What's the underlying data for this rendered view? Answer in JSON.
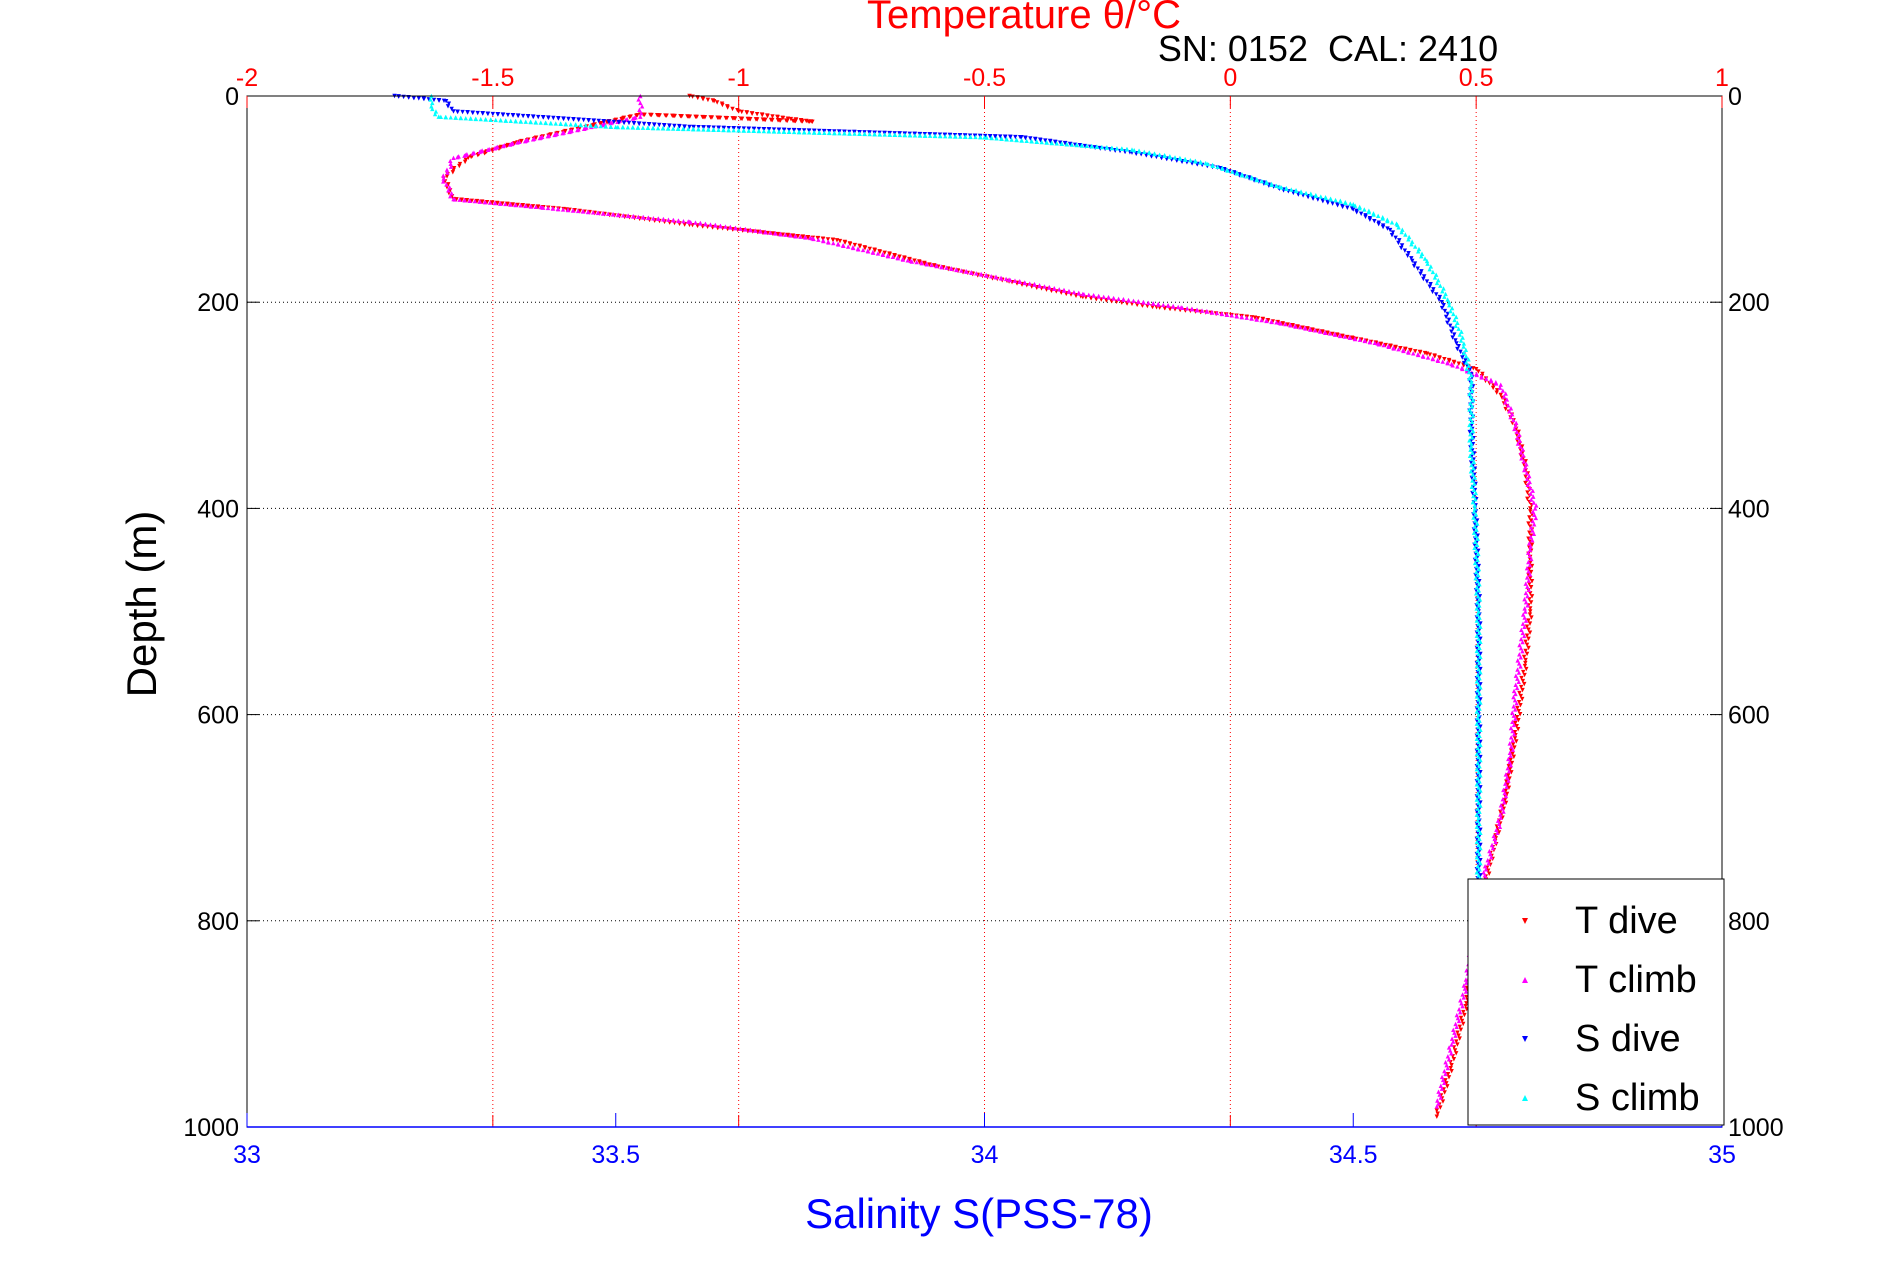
{
  "chart_data": {
    "type": "scatter",
    "top_axis_title": "Temperature θ/°C",
    "annotation": "SN: 0152  CAL: 2410",
    "xlabel": "Salinity S(PSS-78)",
    "ylabel": "Depth (m)",
    "x_bottom_range": [
      33,
      35
    ],
    "x_top_range": [
      -2,
      1
    ],
    "y_range": [
      0,
      1000
    ],
    "y_reversed": true,
    "x_bottom_ticks": [
      "33",
      "33.5",
      "34",
      "34.5",
      "35"
    ],
    "x_top_ticks": [
      "-2",
      "-1.5",
      "-1",
      "-0.5",
      "0",
      "0.5",
      "1"
    ],
    "y_ticks": [
      "0",
      "200",
      "400",
      "600",
      "800",
      "1000"
    ],
    "grid": true,
    "legend_position": "bottom-right",
    "colors": {
      "top_axis": "#ff0000",
      "bottom_axis": "#0000ff",
      "grid": "#000000",
      "axis_frame": "#000000"
    },
    "series": [
      {
        "name": "T dive",
        "axis": "top",
        "marker": "triangle-down",
        "color": "#ff0000",
        "points": [
          [
            -1.1,
            0
          ],
          [
            -1.05,
            5
          ],
          [
            -1.0,
            15
          ],
          [
            -0.9,
            22
          ],
          [
            -0.85,
            25
          ],
          [
            -1.2,
            18
          ],
          [
            -1.45,
            45
          ],
          [
            -1.55,
            60
          ],
          [
            -1.6,
            80
          ],
          [
            -1.58,
            100
          ],
          [
            -1.35,
            110
          ],
          [
            -1.1,
            125
          ],
          [
            -0.8,
            140
          ],
          [
            -0.6,
            165
          ],
          [
            -0.45,
            180
          ],
          [
            -0.3,
            195
          ],
          [
            -0.15,
            205
          ],
          [
            0.05,
            215
          ],
          [
            0.25,
            235
          ],
          [
            0.4,
            250
          ],
          [
            0.5,
            265
          ],
          [
            0.55,
            290
          ],
          [
            0.58,
            320
          ],
          [
            0.6,
            360
          ],
          [
            0.61,
            400
          ],
          [
            0.61,
            450
          ],
          [
            0.61,
            500
          ],
          [
            0.6,
            550
          ],
          [
            0.58,
            620
          ],
          [
            0.56,
            680
          ],
          [
            0.54,
            720
          ],
          [
            0.52,
            760
          ],
          [
            0.5,
            820
          ],
          [
            0.48,
            880
          ],
          [
            0.45,
            940
          ],
          [
            0.42,
            990
          ]
        ]
      },
      {
        "name": "T climb",
        "axis": "top",
        "marker": "triangle-up",
        "color": "#ff00ff",
        "points": [
          [
            -1.2,
            0
          ],
          [
            -1.2,
            20
          ],
          [
            -1.3,
            30
          ],
          [
            -1.45,
            45
          ],
          [
            -1.58,
            60
          ],
          [
            -1.6,
            80
          ],
          [
            -1.58,
            100
          ],
          [
            -1.4,
            108
          ],
          [
            -1.1,
            122
          ],
          [
            -0.85,
            138
          ],
          [
            -0.65,
            160
          ],
          [
            -0.45,
            178
          ],
          [
            -0.3,
            192
          ],
          [
            -0.1,
            205
          ],
          [
            0.1,
            220
          ],
          [
            0.3,
            240
          ],
          [
            0.45,
            260
          ],
          [
            0.55,
            280
          ],
          [
            0.58,
            320
          ],
          [
            0.6,
            360
          ],
          [
            0.62,
            400
          ],
          [
            0.61,
            440
          ],
          [
            0.6,
            500
          ],
          [
            0.58,
            580
          ],
          [
            0.57,
            640
          ],
          [
            0.55,
            700
          ],
          [
            0.52,
            750
          ],
          [
            0.5,
            800
          ],
          [
            0.48,
            860
          ],
          [
            0.45,
            920
          ],
          [
            0.42,
            980
          ]
        ]
      },
      {
        "name": "S dive",
        "axis": "bottom",
        "marker": "triangle-down",
        "color": "#0000ff",
        "points": [
          [
            33.2,
            0
          ],
          [
            33.27,
            5
          ],
          [
            33.28,
            15
          ],
          [
            33.6,
            30
          ],
          [
            34.05,
            40
          ],
          [
            34.2,
            55
          ],
          [
            34.32,
            70
          ],
          [
            34.4,
            90
          ],
          [
            34.5,
            110
          ],
          [
            34.55,
            130
          ],
          [
            34.58,
            160
          ],
          [
            34.62,
            200
          ],
          [
            34.64,
            240
          ],
          [
            34.66,
            270
          ],
          [
            34.66,
            320
          ],
          [
            34.665,
            400
          ],
          [
            34.67,
            500
          ],
          [
            34.67,
            600
          ],
          [
            34.67,
            700
          ],
          [
            34.67,
            800
          ],
          [
            34.67,
            900
          ],
          [
            34.67,
            995
          ]
        ]
      },
      {
        "name": "S climb",
        "axis": "bottom",
        "marker": "triangle-up",
        "color": "#00ffff",
        "points": [
          [
            33.25,
            0
          ],
          [
            33.25,
            10
          ],
          [
            33.26,
            20
          ],
          [
            33.5,
            30
          ],
          [
            34.0,
            40
          ],
          [
            34.2,
            52
          ],
          [
            34.3,
            65
          ],
          [
            34.4,
            88
          ],
          [
            34.5,
            105
          ],
          [
            34.56,
            125
          ],
          [
            34.6,
            160
          ],
          [
            34.63,
            200
          ],
          [
            34.65,
            240
          ],
          [
            34.66,
            280
          ],
          [
            34.66,
            340
          ],
          [
            34.665,
            400
          ],
          [
            34.67,
            500
          ],
          [
            34.67,
            600
          ],
          [
            34.67,
            700
          ],
          [
            34.67,
            800
          ],
          [
            34.67,
            900
          ],
          [
            34.67,
            995
          ]
        ]
      }
    ]
  }
}
